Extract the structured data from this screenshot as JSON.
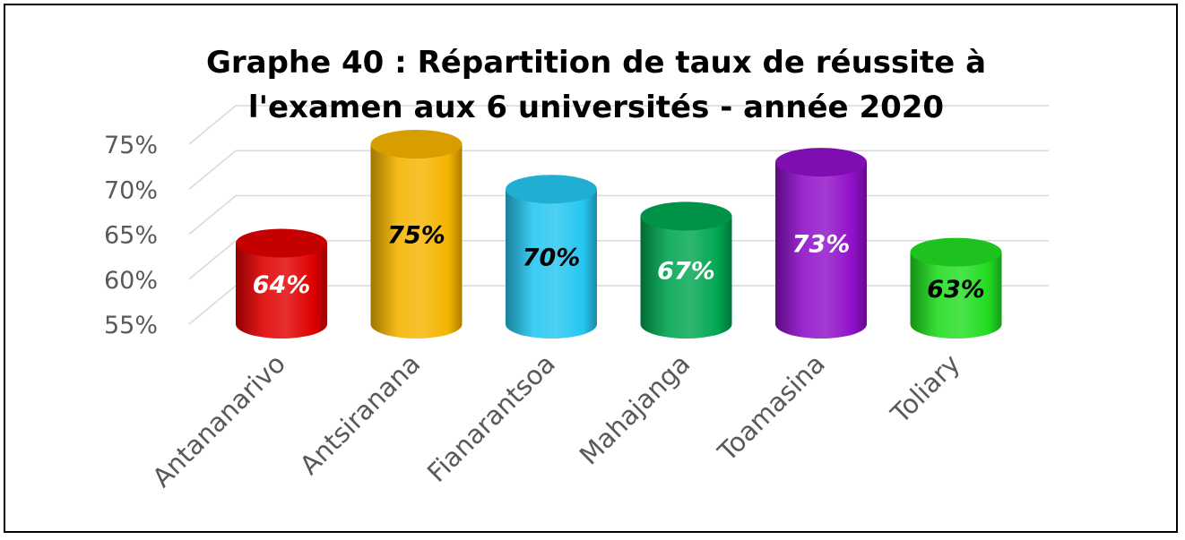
{
  "chart_data": {
    "type": "bar",
    "title_lines": [
      "Graphe 40 : Répartition de taux de réussite à",
      "l'examen aux 6 universités - année 2020"
    ],
    "categories": [
      "Antananarivo",
      "Antsiranana",
      "Fianarantsoa",
      "Mahajanga",
      "Toamasina",
      "Toliary"
    ],
    "values": [
      64,
      75,
      70,
      67,
      73,
      63
    ],
    "data_labels": [
      "64%",
      "75%",
      "70%",
      "67%",
      "73%",
      "63%"
    ],
    "y_ticks": [
      "55%",
      "60%",
      "65%",
      "70%",
      "75%"
    ],
    "ylim": [
      55,
      75
    ],
    "bar_shape": "cylinder",
    "grid": true,
    "legend": "none",
    "colors": [
      "#e00000",
      "#f5b400",
      "#26c6f0",
      "#00a651",
      "#8f10c8",
      "#22dd22"
    ],
    "label_colors": [
      "#ffffff",
      "#000000",
      "#000000",
      "#ffffff",
      "#ffffff",
      "#000000"
    ]
  }
}
